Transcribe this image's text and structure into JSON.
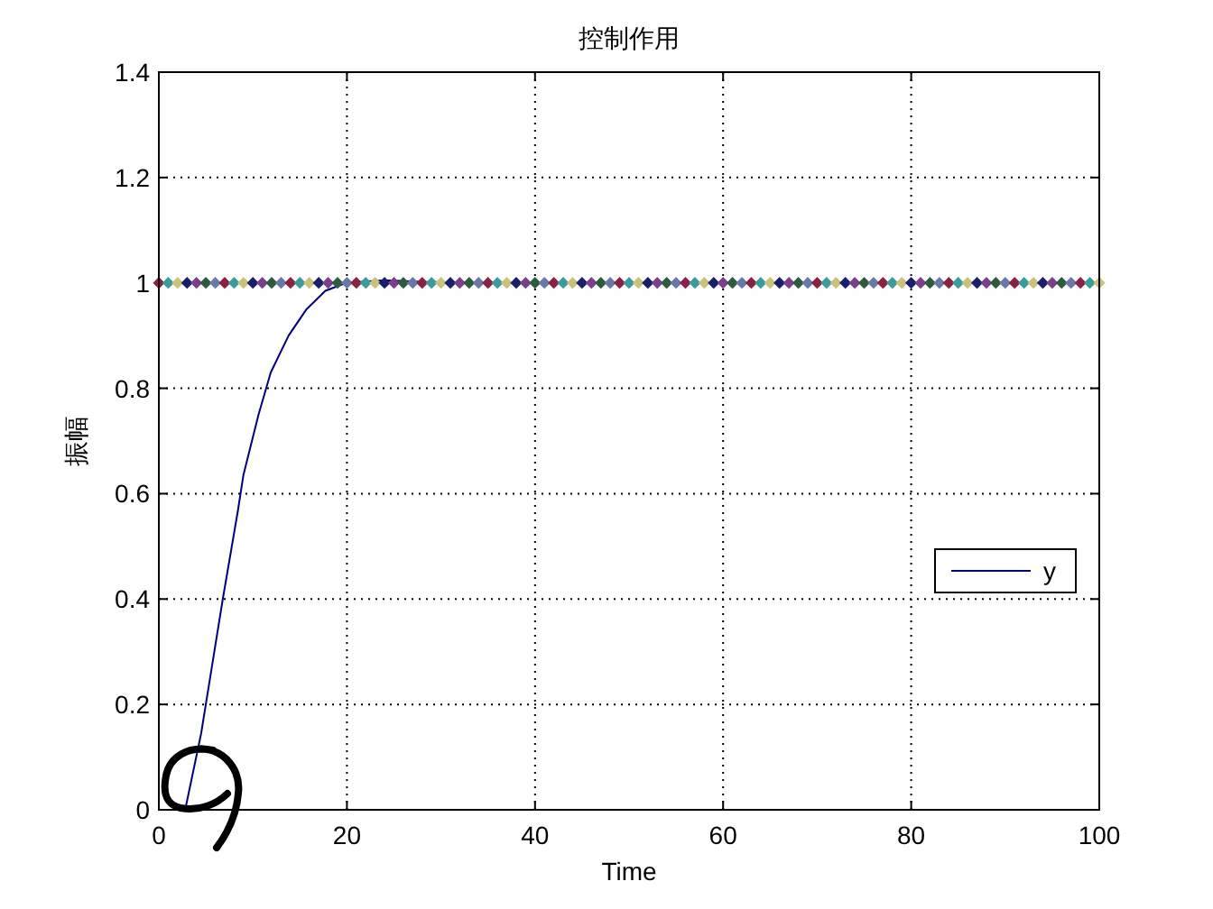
{
  "chart_data": {
    "type": "line",
    "title": "控制作用",
    "xlabel": "Time",
    "ylabel": "振幅",
    "xlim": [
      0,
      100
    ],
    "ylim": [
      0,
      1.4
    ],
    "xticks": [
      0,
      20,
      40,
      60,
      80,
      100
    ],
    "yticks": [
      0,
      0.2,
      0.4,
      0.6,
      0.8,
      1,
      1.2,
      1.4
    ],
    "grid": true,
    "legend": "right",
    "series": [
      {
        "name": "y",
        "type": "line",
        "color": "#00007f",
        "line_style": "solid",
        "x": [
          2.8,
          4.5,
          6.8,
          8.4,
          9.0,
          10.6,
          11.9,
          13.8,
          15.7,
          17.7,
          19.9,
          24,
          28,
          35,
          100
        ],
        "values": [
          0,
          0.145,
          0.4,
          0.567,
          0.636,
          0.75,
          0.83,
          0.9,
          0.95,
          0.985,
          1,
          1.005,
          1.002,
          1,
          1
        ]
      },
      {
        "type": "scatter",
        "marker": "diamond",
        "x": [
          0,
          1,
          2,
          3,
          4,
          5,
          6,
          7,
          8,
          9,
          10,
          11,
          12,
          13,
          14,
          15,
          16,
          17,
          18,
          19,
          20,
          21,
          22,
          23,
          24,
          25,
          26,
          27,
          28,
          29,
          30,
          31,
          32,
          33,
          34,
          35,
          36,
          37,
          38,
          39,
          40,
          41,
          42,
          43,
          44,
          45,
          46,
          47,
          48,
          49,
          50,
          51,
          52,
          53,
          54,
          55,
          56,
          57,
          58,
          59,
          60,
          61,
          62,
          63,
          64,
          65,
          66,
          67,
          68,
          69,
          70,
          71,
          72,
          73,
          74,
          75,
          76,
          77,
          78,
          79,
          80,
          81,
          82,
          83,
          84,
          85,
          86,
          87,
          88,
          89,
          90,
          91,
          92,
          93,
          94,
          95,
          96,
          97,
          98,
          99,
          100
        ],
        "values": [
          1,
          1,
          1,
          1,
          1,
          1,
          1,
          1,
          1,
          1,
          1,
          1,
          1,
          1,
          1,
          1,
          1,
          1,
          1,
          1,
          1,
          1,
          1,
          1,
          1,
          1,
          1,
          1,
          1,
          1,
          1,
          1,
          1,
          1,
          1,
          1,
          1,
          1,
          1,
          1,
          1,
          1,
          1,
          1,
          1,
          1,
          1,
          1,
          1,
          1,
          1,
          1,
          1,
          1,
          1,
          1,
          1,
          1,
          1,
          1,
          1,
          1,
          1,
          1,
          1,
          1,
          1,
          1,
          1,
          1,
          1,
          1,
          1,
          1,
          1,
          1,
          1,
          1,
          1,
          1,
          1,
          1,
          1,
          1,
          1,
          1,
          1,
          1,
          1,
          1,
          1,
          1,
          1,
          1,
          1,
          1,
          1,
          1,
          1,
          1,
          1
        ],
        "colors": [
          "#8b2246",
          "#3b9c9c",
          "#c9c27a",
          "#1b1f6b",
          "#7b3f8c",
          "#2f5b40",
          "#6a78a8",
          "#8b2246",
          "#3b9c9c",
          "#c9c27a",
          "#1b1f6b",
          "#7b3f8c",
          "#2f5b40",
          "#6a78a8",
          "#8b2246",
          "#3b9c9c",
          "#c9c27a",
          "#1b1f6b",
          "#7b3f8c",
          "#2f5b40",
          "#6a78a8",
          "#8b2246",
          "#3b9c9c",
          "#c9c27a",
          "#1b1f6b",
          "#7b3f8c",
          "#2f5b40",
          "#6a78a8",
          "#8b2246",
          "#3b9c9c",
          "#c9c27a",
          "#1b1f6b",
          "#7b3f8c",
          "#2f5b40",
          "#6a78a8",
          "#8b2246",
          "#3b9c9c",
          "#c9c27a",
          "#1b1f6b",
          "#7b3f8c",
          "#2f5b40",
          "#6a78a8",
          "#8b2246",
          "#3b9c9c",
          "#c9c27a",
          "#1b1f6b",
          "#7b3f8c",
          "#2f5b40",
          "#6a78a8",
          "#8b2246",
          "#3b9c9c",
          "#c9c27a",
          "#1b1f6b",
          "#7b3f8c",
          "#2f5b40",
          "#6a78a8",
          "#8b2246",
          "#3b9c9c",
          "#c9c27a",
          "#1b1f6b",
          "#7b3f8c",
          "#2f5b40",
          "#6a78a8",
          "#8b2246",
          "#3b9c9c",
          "#c9c27a",
          "#1b1f6b",
          "#7b3f8c",
          "#2f5b40",
          "#6a78a8",
          "#8b2246",
          "#3b9c9c",
          "#c9c27a",
          "#1b1f6b",
          "#7b3f8c",
          "#2f5b40",
          "#6a78a8",
          "#8b2246",
          "#3b9c9c",
          "#c9c27a",
          "#1b1f6b",
          "#7b3f8c",
          "#2f5b40",
          "#6a78a8",
          "#8b2246",
          "#3b9c9c",
          "#c9c27a",
          "#1b1f6b",
          "#7b3f8c",
          "#2f5b40",
          "#6a78a8",
          "#8b2246",
          "#3b9c9c",
          "#c9c27a",
          "#1b1f6b",
          "#7b3f8c",
          "#2f5b40",
          "#6a78a8",
          "#8b2246",
          "#3b9c9c",
          "#c9c27a"
        ]
      }
    ]
  }
}
